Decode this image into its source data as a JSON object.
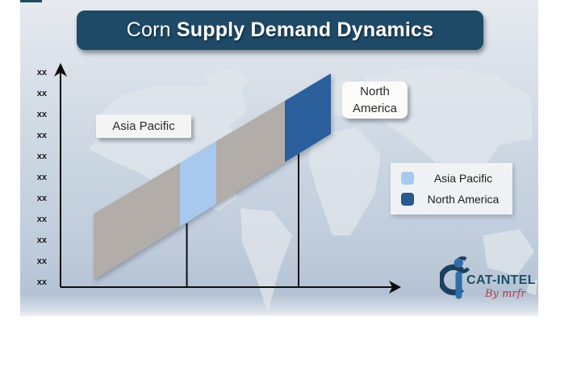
{
  "title": {
    "regular": "Corn ",
    "bold": "Supply Demand Dynamics"
  },
  "chart_data": {
    "type": "area",
    "title": "Corn Supply Demand Dynamics",
    "description": "Rising diagonal ribbon band over a world-map watermark; band segments highlight regional market size, values shown as placeholders",
    "y_axis": {
      "label": "",
      "tick_labels": [
        "xx",
        "xx",
        "xx",
        "xx",
        "xx",
        "xx",
        "xx",
        "xx",
        "xx",
        "xx",
        "xx"
      ]
    },
    "x_axis": {
      "label": "",
      "tick_labels": []
    },
    "band_segments": [
      {
        "region": "",
        "color": "#b2ada8"
      },
      {
        "region": "Asia Pacific",
        "color": "#a8c9ee"
      },
      {
        "region": "",
        "color": "#b2ada8"
      },
      {
        "region": "North America",
        "color": "#2a5f9c"
      }
    ],
    "values_placeholder": "xx",
    "legend_position": "right",
    "grid": false
  },
  "annotations": {
    "asia_pacific": "Asia Pacific",
    "north_america_line1": "North",
    "north_america_line2": "America"
  },
  "legend": {
    "items": [
      {
        "label": "Asia Pacific"
      },
      {
        "label": "North America"
      }
    ]
  },
  "logo": {
    "brand": "CAT-INTEL",
    "byline": "By mrfr"
  },
  "colors": {
    "banner": "#1e4a68",
    "neutral_segment": "#b2ada8",
    "asia_pacific": "#a8c9ee",
    "north_america": "#2a5f9c",
    "legend_swatch_asia_pacific": "#a8c9ee",
    "legend_swatch_north_america": "#27598f",
    "axis": "#0d0d0d",
    "top_accent": "#1e4a68",
    "logo_dark": "#1c3f5e",
    "logo_blue": "#2f6da9",
    "logo_text": "#1d4f63",
    "logo_byline": "#b03a4a"
  }
}
